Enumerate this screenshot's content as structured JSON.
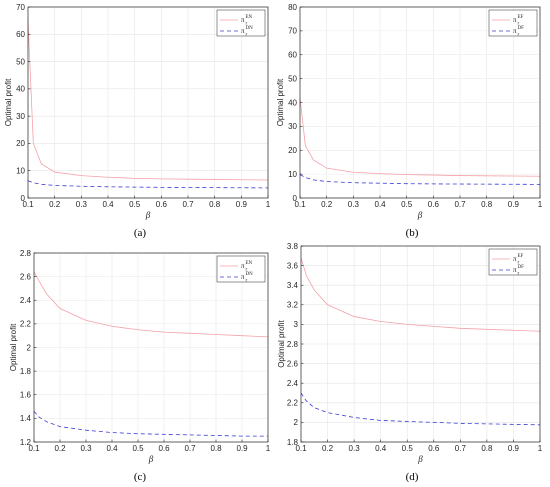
{
  "chart_data": [
    {
      "type": "line",
      "caption": "(a)",
      "xlabel": "β",
      "ylabel": "Optimal profit",
      "xlim": [
        0.1,
        1
      ],
      "ylim": [
        0,
        70
      ],
      "xticks": [
        0.1,
        0.2,
        0.3,
        0.4,
        0.5,
        0.6,
        0.7,
        0.8,
        0.9,
        1
      ],
      "yticks": [
        0,
        10,
        20,
        30,
        40,
        50,
        60,
        70
      ],
      "grid": true,
      "legend_position": "top-right",
      "x": [
        0.1,
        0.12,
        0.15,
        0.2,
        0.3,
        0.4,
        0.5,
        0.6,
        0.7,
        0.8,
        0.9,
        1.0
      ],
      "series": [
        {
          "name": "π",
          "sub": "r",
          "sup": "EN",
          "color": "#f4a0a8",
          "dash": "",
          "values": [
            65,
            20,
            12.5,
            9.5,
            8.2,
            7.6,
            7.2,
            7.0,
            6.9,
            6.8,
            6.7,
            6.6
          ]
        },
        {
          "name": "π",
          "sub": "r",
          "sup": "DN",
          "color": "#3b3bd6",
          "dash": "4,3",
          "values": [
            6.3,
            5.6,
            5.0,
            4.6,
            4.3,
            4.1,
            4.0,
            3.9,
            3.85,
            3.8,
            3.75,
            3.7
          ]
        }
      ]
    },
    {
      "type": "line",
      "caption": "(b)",
      "xlabel": "β",
      "ylabel": "Optimal profit",
      "xlim": [
        0.1,
        1
      ],
      "ylim": [
        0,
        80
      ],
      "xticks": [
        0.1,
        0.2,
        0.3,
        0.4,
        0.5,
        0.6,
        0.7,
        0.8,
        0.9,
        1
      ],
      "yticks": [
        0,
        10,
        20,
        30,
        40,
        50,
        60,
        70,
        80
      ],
      "grid": true,
      "legend_position": "top-right",
      "x": [
        0.1,
        0.12,
        0.15,
        0.2,
        0.3,
        0.4,
        0.5,
        0.6,
        0.7,
        0.8,
        0.9,
        1.0
      ],
      "series": [
        {
          "name": "π",
          "sub": "r",
          "sup": "EF",
          "color": "#f4a0a8",
          "dash": "",
          "values": [
            42,
            22,
            16,
            12.5,
            10.8,
            10.2,
            9.8,
            9.6,
            9.4,
            9.3,
            9.2,
            9.1
          ]
        },
        {
          "name": "π",
          "sub": "r",
          "sup": "DF",
          "color": "#3b3bd6",
          "dash": "4,3",
          "values": [
            9.8,
            8.6,
            7.6,
            6.9,
            6.4,
            6.2,
            6.0,
            5.9,
            5.85,
            5.8,
            5.75,
            5.7
          ]
        }
      ]
    },
    {
      "type": "line",
      "caption": "(c)",
      "xlabel": "β",
      "ylabel": "Optimal profit",
      "xlim": [
        0.1,
        1
      ],
      "ylim": [
        1.2,
        2.8
      ],
      "xticks": [
        0.1,
        0.2,
        0.3,
        0.4,
        0.5,
        0.6,
        0.7,
        0.8,
        0.9,
        1
      ],
      "yticks": [
        1.2,
        1.4,
        1.6,
        1.8,
        2,
        2.2,
        2.4,
        2.6,
        2.8
      ],
      "grid": true,
      "legend_position": "top-right",
      "x": [
        0.1,
        0.12,
        0.15,
        0.2,
        0.3,
        0.4,
        0.5,
        0.6,
        0.7,
        0.8,
        0.9,
        1.0
      ],
      "series": [
        {
          "name": "π",
          "sub": "r",
          "sup": "EN",
          "color": "#f4a0a8",
          "dash": "",
          "values": [
            2.64,
            2.56,
            2.45,
            2.33,
            2.23,
            2.18,
            2.15,
            2.13,
            2.12,
            2.11,
            2.1,
            2.09
          ]
        },
        {
          "name": "π",
          "sub": "r",
          "sup": "DN",
          "color": "#3b3bd6",
          "dash": "4,3",
          "values": [
            1.46,
            1.41,
            1.37,
            1.33,
            1.3,
            1.28,
            1.27,
            1.265,
            1.26,
            1.255,
            1.25,
            1.25
          ]
        }
      ]
    },
    {
      "type": "line",
      "caption": "(d)",
      "xlabel": "β",
      "ylabel": "Optimal profit",
      "xlim": [
        0.1,
        1
      ],
      "ylim": [
        1.8,
        3.8
      ],
      "xticks": [
        0.1,
        0.2,
        0.3,
        0.4,
        0.5,
        0.6,
        0.7,
        0.8,
        0.9,
        1
      ],
      "yticks": [
        1.8,
        2,
        2.2,
        2.4,
        2.6,
        2.8,
        3,
        3.2,
        3.4,
        3.6,
        3.8
      ],
      "grid": true,
      "legend_position": "top-right",
      "x": [
        0.1,
        0.12,
        0.15,
        0.2,
        0.3,
        0.4,
        0.5,
        0.6,
        0.7,
        0.8,
        0.9,
        1.0
      ],
      "series": [
        {
          "name": "π",
          "sub": "r",
          "sup": "EF",
          "color": "#f4a0a8",
          "dash": "",
          "values": [
            3.68,
            3.5,
            3.35,
            3.2,
            3.08,
            3.03,
            3.0,
            2.98,
            2.96,
            2.95,
            2.94,
            2.93
          ]
        },
        {
          "name": "π",
          "sub": "r",
          "sup": "DF",
          "color": "#3b3bd6",
          "dash": "4,3",
          "values": [
            2.3,
            2.22,
            2.15,
            2.1,
            2.05,
            2.02,
            2.01,
            2.0,
            1.99,
            1.985,
            1.98,
            1.975
          ]
        }
      ]
    }
  ]
}
